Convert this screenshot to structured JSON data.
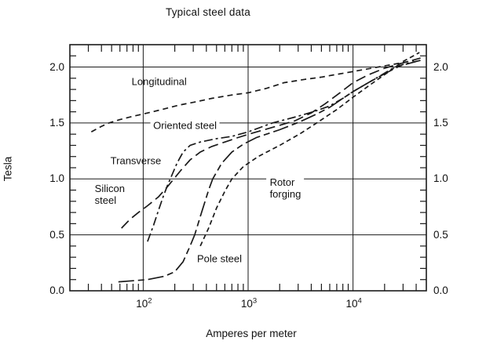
{
  "chart_data": {
    "type": "line",
    "title": "Typical steel data",
    "xlabel": "Amperes per meter",
    "ylabel": "Tesla",
    "x_scale": "log",
    "xlim": [
      20,
      50000
    ],
    "ylim": [
      0,
      2.2
    ],
    "grid": "major gridlines on, inward minor ticks on all four borders",
    "legend_position": "inline labels on plot",
    "x_major_ticks": [
      {
        "value": 100,
        "label_base": "10",
        "label_exp": "2"
      },
      {
        "value": 1000,
        "label_base": "10",
        "label_exp": "3"
      },
      {
        "value": 10000,
        "label_base": "10",
        "label_exp": "4"
      }
    ],
    "y_major_ticks": [
      0,
      0.5,
      1.0,
      1.5,
      2.0
    ],
    "y_tick_labels": [
      "0.0",
      "0.5",
      "1.0",
      "1.5",
      "2.0"
    ],
    "y_tick_labels_both_sides": true,
    "y_minor_step": 0.1,
    "ink_color": "#1a1a1a",
    "background_color": "#ffffff",
    "series": [
      {
        "name": "Longitudinal",
        "dash": "7 5",
        "points": [
          [
            32,
            1.42
          ],
          [
            40,
            1.47
          ],
          [
            47,
            1.5
          ],
          [
            60,
            1.53
          ],
          [
            80,
            1.56
          ],
          [
            100,
            1.58
          ],
          [
            150,
            1.62
          ],
          [
            220,
            1.66
          ],
          [
            320,
            1.69
          ],
          [
            450,
            1.72
          ],
          [
            700,
            1.75
          ],
          [
            1000,
            1.77
          ],
          [
            1500,
            1.81
          ],
          [
            2200,
            1.86
          ],
          [
            3500,
            1.89
          ],
          [
            5000,
            1.91
          ],
          [
            6600,
            1.93
          ],
          [
            10000,
            1.96
          ],
          [
            15000,
            1.99
          ],
          [
            20000,
            2.01
          ],
          [
            30000,
            2.04
          ],
          [
            38000,
            2.06
          ]
        ]
      },
      {
        "name": "Transverse",
        "dash": "11 4 3 4",
        "points": [
          [
            110,
            0.44
          ],
          [
            125,
            0.58
          ],
          [
            140,
            0.72
          ],
          [
            155,
            0.84
          ],
          [
            170,
            0.94
          ],
          [
            185,
            1.02
          ],
          [
            210,
            1.14
          ],
          [
            240,
            1.24
          ],
          [
            280,
            1.3
          ],
          [
            350,
            1.33
          ],
          [
            500,
            1.36
          ],
          [
            700,
            1.38
          ],
          [
            1000,
            1.42
          ],
          [
            1700,
            1.5
          ],
          [
            3000,
            1.56
          ],
          [
            4500,
            1.61
          ],
          [
            5900,
            1.65
          ],
          [
            8000,
            1.72
          ],
          [
            10000,
            1.78
          ],
          [
            14000,
            1.86
          ],
          [
            18000,
            1.92
          ],
          [
            25000,
            2.0
          ],
          [
            32000,
            2.03
          ],
          [
            44000,
            2.06
          ]
        ]
      },
      {
        "name": "Silicon steel",
        "dash": "13 6",
        "points": [
          [
            62,
            0.56
          ],
          [
            75,
            0.64
          ],
          [
            90,
            0.7
          ],
          [
            110,
            0.76
          ],
          [
            140,
            0.84
          ],
          [
            170,
            0.93
          ],
          [
            196,
            1.0
          ],
          [
            230,
            1.08
          ],
          [
            280,
            1.17
          ],
          [
            350,
            1.24
          ],
          [
            450,
            1.29
          ],
          [
            600,
            1.33
          ],
          [
            800,
            1.37
          ],
          [
            1100,
            1.41
          ],
          [
            1700,
            1.46
          ],
          [
            2800,
            1.52
          ],
          [
            4000,
            1.59
          ],
          [
            5400,
            1.67
          ],
          [
            7500,
            1.77
          ],
          [
            10000,
            1.86
          ],
          [
            14000,
            1.93
          ],
          [
            20000,
            1.99
          ],
          [
            28000,
            2.03
          ],
          [
            44000,
            2.08
          ]
        ]
      },
      {
        "name": "Rotor forging",
        "dash": "6 4",
        "points": [
          [
            350,
            0.4
          ],
          [
            420,
            0.56
          ],
          [
            500,
            0.74
          ],
          [
            600,
            0.89
          ],
          [
            700,
            1.0
          ],
          [
            900,
            1.11
          ],
          [
            1250,
            1.2
          ],
          [
            2000,
            1.3
          ],
          [
            3200,
            1.41
          ],
          [
            4500,
            1.5
          ],
          [
            7000,
            1.62
          ],
          [
            10000,
            1.73
          ],
          [
            15000,
            1.85
          ],
          [
            22000,
            1.96
          ],
          [
            30000,
            2.05
          ],
          [
            43000,
            2.13
          ]
        ]
      },
      {
        "name": "Pole steel",
        "dash": "20 5 8 5",
        "points": [
          [
            58,
            0.08
          ],
          [
            80,
            0.09
          ],
          [
            110,
            0.1
          ],
          [
            160,
            0.13
          ],
          [
            200,
            0.17
          ],
          [
            240,
            0.26
          ],
          [
            280,
            0.4
          ],
          [
            310,
            0.5
          ],
          [
            360,
            0.7
          ],
          [
            420,
            0.9
          ],
          [
            460,
            1.0
          ],
          [
            560,
            1.14
          ],
          [
            700,
            1.24
          ],
          [
            900,
            1.31
          ],
          [
            1200,
            1.37
          ],
          [
            2000,
            1.44
          ],
          [
            3100,
            1.51
          ],
          [
            4500,
            1.58
          ],
          [
            6000,
            1.64
          ],
          [
            8000,
            1.72
          ],
          [
            10000,
            1.78
          ],
          [
            14000,
            1.86
          ],
          [
            20000,
            1.94
          ],
          [
            28000,
            2.01
          ],
          [
            40000,
            2.05
          ]
        ]
      }
    ],
    "labels": [
      {
        "lines": [
          "Longitudinal"
        ],
        "x": 142,
        "y": 1.87,
        "bg": false
      },
      {
        "lines": [
          "Oriented steel"
        ],
        "x": 250,
        "y": 1.48,
        "bg": true
      },
      {
        "lines": [
          "Transverse"
        ],
        "x": 85,
        "y": 1.16,
        "bg": false
      },
      {
        "lines": [
          "Silicon",
          "steel"
        ],
        "x": 48,
        "y": 0.86,
        "bg": false
      },
      {
        "lines": [
          "Rotor",
          "forging"
        ],
        "x": 2265,
        "y": 0.92,
        "bg": true
      },
      {
        "lines": [
          "Pole steel"
        ],
        "x": 533,
        "y": 0.29,
        "bg": false
      }
    ]
  }
}
